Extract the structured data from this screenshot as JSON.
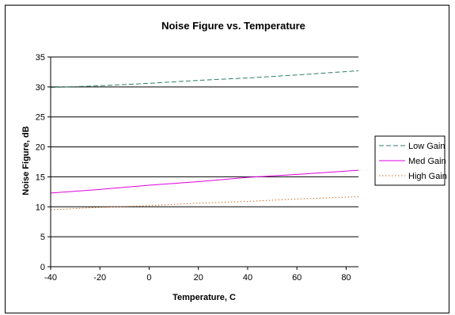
{
  "chart_data": {
    "type": "line",
    "title": "Noise Figure vs. Temperature",
    "xlabel": "Temperature, C",
    "ylabel": "Noise Figure, dB",
    "xlim": [
      -40,
      85
    ],
    "ylim": [
      0,
      35
    ],
    "xticks": [
      -40,
      -20,
      0,
      20,
      40,
      60,
      80
    ],
    "yticks": [
      0,
      5,
      10,
      15,
      20,
      25,
      30,
      35
    ],
    "grid": "horizontal",
    "legend": "right",
    "series": [
      {
        "name": "Low Gain",
        "color": "#2E7D6B",
        "dash": "dashed",
        "x": [
          -40,
          -20,
          0,
          20,
          40,
          60,
          85
        ],
        "y": [
          29.9,
          30.2,
          30.6,
          31.1,
          31.5,
          32.0,
          32.7
        ]
      },
      {
        "name": "Med Gain",
        "color": "#E000E0",
        "dash": "solid",
        "x": [
          -40,
          -20,
          0,
          20,
          40,
          60,
          85
        ],
        "y": [
          12.3,
          12.9,
          13.6,
          14.2,
          14.9,
          15.4,
          16.1
        ]
      },
      {
        "name": "High Gain",
        "color": "#D2691E",
        "dash": "dotted",
        "x": [
          -40,
          -20,
          0,
          20,
          40,
          60,
          85
        ],
        "y": [
          9.5,
          9.9,
          10.2,
          10.6,
          10.9,
          11.3,
          11.7
        ]
      }
    ]
  }
}
